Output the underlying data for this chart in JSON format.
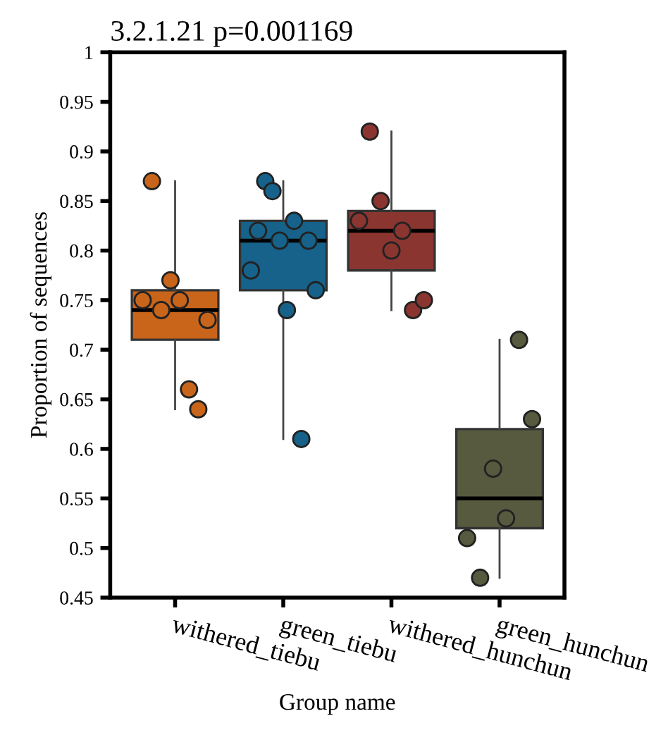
{
  "chart_data": {
    "type": "box",
    "title": "3.2.1.21 p=0.001169",
    "xlabel": "Group name",
    "ylabel": "Proportion of sequences",
    "categories": [
      "withered_tiebu",
      "green_tiebu",
      "withered_hunchun",
      "green_hunchun"
    ],
    "colors": [
      "#c8651b",
      "#16628a",
      "#8b3530",
      "#575a3e"
    ],
    "boxes": [
      {
        "low": 0.64,
        "q1": 0.71,
        "median": 0.74,
        "q3": 0.76,
        "high": 0.87
      },
      {
        "low": 0.61,
        "q1": 0.76,
        "median": 0.81,
        "q3": 0.83,
        "high": 0.87
      },
      {
        "low": 0.74,
        "q1": 0.78,
        "median": 0.82,
        "q3": 0.84,
        "high": 0.92
      },
      {
        "low": 0.47,
        "q1": 0.52,
        "median": 0.55,
        "q3": 0.62,
        "high": 0.71
      }
    ],
    "series": [
      {
        "type": "scatter",
        "color": "#c8651b",
        "x": [
          "withered_tiebu",
          "withered_tiebu",
          "withered_tiebu",
          "withered_tiebu",
          "withered_tiebu",
          "withered_tiebu",
          "withered_tiebu",
          "withered_tiebu"
        ],
        "values": [
          0.75,
          0.87,
          0.74,
          0.77,
          0.75,
          0.66,
          0.64,
          0.73
        ]
      },
      {
        "type": "scatter",
        "color": "#16628a",
        "x": [
          "green_tiebu",
          "green_tiebu",
          "green_tiebu",
          "green_tiebu",
          "green_tiebu",
          "green_tiebu",
          "green_tiebu",
          "green_tiebu",
          "green_tiebu",
          "green_tiebu"
        ],
        "values": [
          0.78,
          0.82,
          0.87,
          0.86,
          0.81,
          0.74,
          0.83,
          0.61,
          0.81,
          0.76
        ]
      },
      {
        "type": "scatter",
        "color": "#8b3530",
        "x": [
          "withered_hunchun",
          "withered_hunchun",
          "withered_hunchun",
          "withered_hunchun",
          "withered_hunchun",
          "withered_hunchun",
          "withered_hunchun"
        ],
        "values": [
          0.83,
          0.92,
          0.85,
          0.8,
          0.82,
          0.74,
          0.75
        ]
      },
      {
        "type": "scatter",
        "color": "#575a3e",
        "x": [
          "green_hunchun",
          "green_hunchun",
          "green_hunchun",
          "green_hunchun",
          "green_hunchun",
          "green_hunchun"
        ],
        "values": [
          0.51,
          0.47,
          0.58,
          0.53,
          0.71,
          0.63
        ]
      }
    ],
    "ylim": [
      0.45,
      1
    ],
    "yticks": [
      0.45,
      0.5,
      0.55,
      0.6,
      0.65,
      0.7,
      0.75,
      0.8,
      0.85,
      0.9,
      0.95,
      1
    ],
    "grid": false,
    "marker": "circle"
  }
}
